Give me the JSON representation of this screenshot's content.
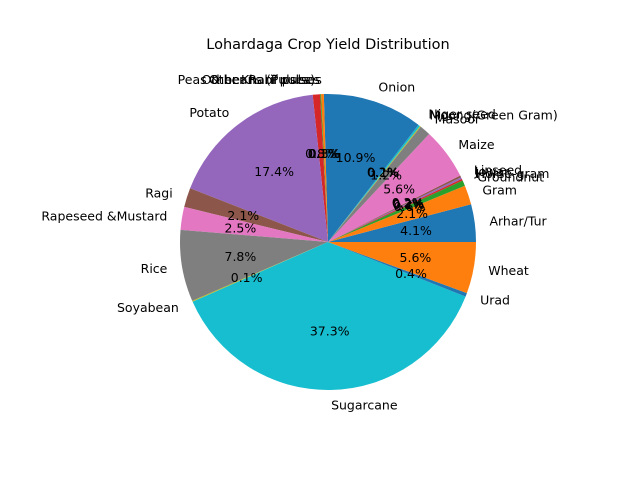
{
  "chart_data": {
    "type": "pie",
    "title": "Lohardaga Crop Yield Distribution",
    "start_angle_deg": 0,
    "direction": "counterclockwise",
    "slices": [
      {
        "label": "Arhar/Tur",
        "value": 4.1,
        "pct_label": "4.1%",
        "color": "#1f77b4"
      },
      {
        "label": "Gram",
        "value": 2.1,
        "pct_label": "2.1%",
        "color": "#ff7f0e"
      },
      {
        "label": "Groundnut",
        "value": 0.6,
        "pct_label": "0.6%",
        "color": "#2ca02c"
      },
      {
        "label": "Horse-gram",
        "value": 0.2,
        "pct_label": "0.2%",
        "color": "#d62728"
      },
      {
        "label": "Jowar",
        "value": 0.2,
        "pct_label": "0.2%",
        "color": "#9467bd"
      },
      {
        "label": "Linseed",
        "value": 0.2,
        "pct_label": "0.2%",
        "color": "#8c564b"
      },
      {
        "label": "Maize",
        "value": 5.6,
        "pct_label": "5.6%",
        "color": "#e377c2"
      },
      {
        "label": "Masoor",
        "value": 1.2,
        "pct_label": "1.2%",
        "color": "#7f7f7f"
      },
      {
        "label": "Moong(Green Gram)",
        "value": 0.1,
        "pct_label": "0.1%",
        "color": "#bcbd22"
      },
      {
        "label": "Niger seed",
        "value": 0.2,
        "pct_label": "0.2%",
        "color": "#17becf"
      },
      {
        "label": "Onion",
        "value": 10.9,
        "pct_label": "10.9%",
        "color": "#1f77b4"
      },
      {
        "label": "Other Kharif pulses",
        "value": 0.3,
        "pct_label": "0.3%",
        "color": "#ff7f0e"
      },
      {
        "label": "Other Rabi pulses",
        "value": 0.1,
        "pct_label": "0.1%",
        "color": "#2ca02c"
      },
      {
        "label": "Peas & beans (Pulses)",
        "value": 0.8,
        "pct_label": "0.8%",
        "color": "#d62728"
      },
      {
        "label": "Potato",
        "value": 17.4,
        "pct_label": "17.4%",
        "color": "#9467bd"
      },
      {
        "label": "Ragi",
        "value": 2.1,
        "pct_label": "2.1%",
        "color": "#8c564b"
      },
      {
        "label": "Rapeseed &Mustard",
        "value": 2.5,
        "pct_label": "2.5%",
        "color": "#e377c2"
      },
      {
        "label": "Rice",
        "value": 7.8,
        "pct_label": "7.8%",
        "color": "#7f7f7f"
      },
      {
        "label": "Soyabean",
        "value": 0.1,
        "pct_label": "0.1%",
        "color": "#bcbd22"
      },
      {
        "label": "Sugarcane",
        "value": 37.3,
        "pct_label": "37.3%",
        "color": "#17becf"
      },
      {
        "label": "Urad",
        "value": 0.4,
        "pct_label": "0.4%",
        "color": "#1f77b4"
      },
      {
        "label": "Wheat",
        "value": 5.6,
        "pct_label": "5.6%",
        "color": "#ff7f0e"
      }
    ]
  }
}
